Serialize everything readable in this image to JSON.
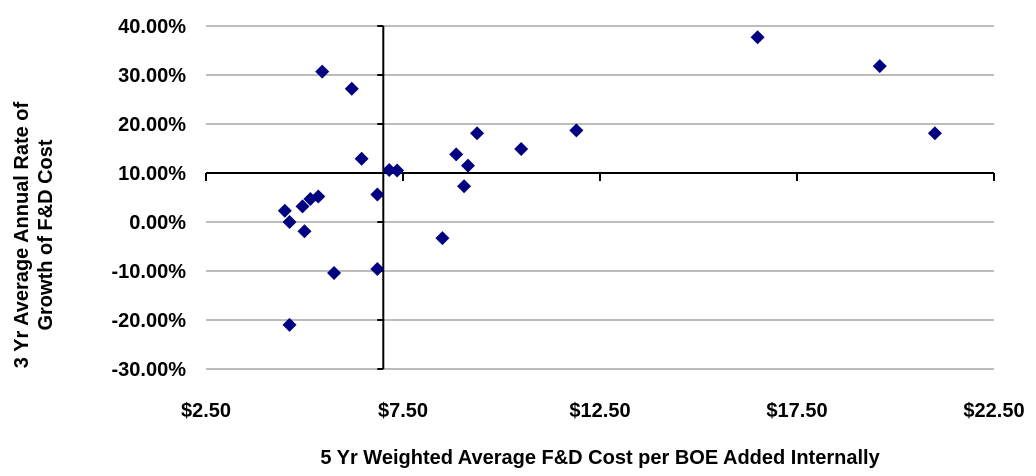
{
  "chart_data": {
    "type": "scatter",
    "title": "",
    "xlabel": "5 Yr Weighted Average F&D Cost per BOE Added Internally",
    "ylabel_lines": [
      "3 Yr Average Annual Rate of",
      "Growth of F&D Cost"
    ],
    "xlim": [
      2.5,
      22.5
    ],
    "ylim": [
      -30,
      40
    ],
    "x_ticks": [
      2.5,
      7.5,
      12.5,
      17.5,
      22.5
    ],
    "x_tick_labels": [
      "$2.50",
      "$7.50",
      "$12.50",
      "$17.50",
      "$22.50"
    ],
    "y_ticks": [
      40,
      30,
      20,
      10,
      0,
      -10,
      -20,
      -30
    ],
    "y_tick_labels": [
      "40.00%",
      "30.00%",
      "20.00%",
      "10.00%",
      "0.00%",
      "-10.00%",
      "-20.00%",
      "-30.00%"
    ],
    "x_axis_crosses_y_at": 10,
    "y_axis_crosses_x_at": 7.0,
    "gridlines": "horizontal",
    "marker": "diamond",
    "marker_color": "#000080",
    "points": [
      {
        "x": 4.5,
        "y": 2.3
      },
      {
        "x": 4.62,
        "y": 0.0
      },
      {
        "x": 4.95,
        "y": 3.2
      },
      {
        "x": 5.15,
        "y": 4.7
      },
      {
        "x": 5.35,
        "y": 5.2
      },
      {
        "x": 5.0,
        "y": -1.9
      },
      {
        "x": 4.62,
        "y": -21.0
      },
      {
        "x": 5.45,
        "y": 30.7
      },
      {
        "x": 5.75,
        "y": -10.4
      },
      {
        "x": 6.2,
        "y": 27.2
      },
      {
        "x": 6.45,
        "y": 12.9
      },
      {
        "x": 6.85,
        "y": 5.6
      },
      {
        "x": 6.85,
        "y": -9.6
      },
      {
        "x": 7.15,
        "y": 10.6
      },
      {
        "x": 7.35,
        "y": 10.5
      },
      {
        "x": 8.5,
        "y": -3.3
      },
      {
        "x": 8.85,
        "y": 13.8
      },
      {
        "x": 9.05,
        "y": 7.3
      },
      {
        "x": 9.15,
        "y": 11.5
      },
      {
        "x": 9.38,
        "y": 18.1
      },
      {
        "x": 10.5,
        "y": 14.9
      },
      {
        "x": 11.9,
        "y": 18.7
      },
      {
        "x": 16.5,
        "y": 37.7
      },
      {
        "x": 19.6,
        "y": 31.8
      },
      {
        "x": 21.0,
        "y": 18.1
      }
    ]
  }
}
